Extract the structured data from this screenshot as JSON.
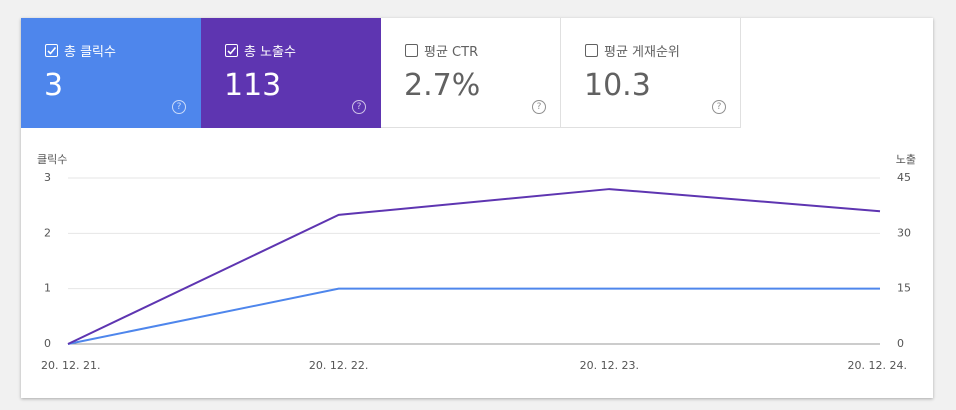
{
  "metrics": [
    {
      "label": "총 클릭수",
      "value": 3,
      "checked": true,
      "color": "#4e86ec"
    },
    {
      "label": "총 노출수",
      "value": 113,
      "checked": true,
      "color": "#5e35b1"
    },
    {
      "label": "평균 CTR",
      "value": "2.7%",
      "checked": false,
      "color": "#ffffff"
    },
    {
      "label": "평균 게재순위",
      "value": 10.3,
      "checked": false,
      "color": "#ffffff"
    }
  ],
  "chart_data": {
    "type": "line",
    "y_label": "클릭수",
    "y2_label": "노출",
    "categories": [
      "20. 12. 21.",
      "20. 12. 22.",
      "20. 12. 23.",
      "20. 12. 24."
    ],
    "series": [
      {
        "name": "클릭수",
        "color": "#4e86ec",
        "values": [
          0,
          1,
          1,
          1
        ]
      },
      {
        "name": "노출",
        "color": "#5e35b1",
        "values": [
          0,
          35,
          42,
          36
        ],
        "axis": "y2"
      }
    ],
    "ylim": [
      0,
      3
    ],
    "yticks": [
      0,
      1,
      2,
      3
    ],
    "y2lim": [
      0,
      45
    ],
    "y2ticks": [
      0,
      15,
      30,
      45
    ],
    "grid": true
  }
}
